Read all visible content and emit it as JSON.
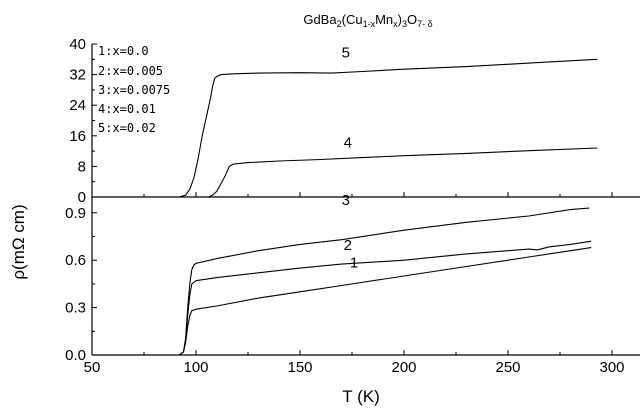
{
  "chart_data": [
    {
      "type": "line",
      "panel": "upper",
      "title": "",
      "title_parts": {
        "prefix": "GdBa",
        "sub1": "2",
        "mid1": "(Cu",
        "sub2": "1-x",
        "mid2": "Mn",
        "sub3": "x",
        "mid3": ")",
        "sub4": "3",
        "mid4": "O",
        "sub5": "7- δ"
      },
      "xlim": [
        50,
        320
      ],
      "ylim": [
        0,
        40
      ],
      "yticks": [
        0,
        8,
        16,
        24,
        32,
        40
      ],
      "ytick_labels": [
        "0",
        "8",
        "16",
        "24",
        "32",
        "40"
      ],
      "legend_placement": "top-left",
      "legend": [
        "1:x=0.0",
        "2:x=0.005",
        "3:x=0.0075",
        "4:x=0.01",
        "5:x=0.02"
      ],
      "series": [
        {
          "name": "5",
          "x": [
            85,
            92,
            95,
            97,
            99,
            101,
            103,
            105,
            107,
            108,
            109,
            110,
            112,
            118,
            130,
            150,
            165,
            180,
            200,
            230,
            260,
            293
          ],
          "y": [
            0,
            0,
            0.5,
            2,
            5,
            10,
            16,
            21,
            26,
            29,
            31,
            31.5,
            32,
            32.2,
            32.4,
            32.5,
            32.4,
            32.8,
            33.4,
            34.1,
            35.0,
            36.0
          ],
          "label": "5",
          "label_at": [
            172,
            36.5
          ]
        },
        {
          "name": "4",
          "x": [
            100,
            106,
            108,
            110,
            112,
            114,
            116,
            118,
            125,
            140,
            160,
            180,
            200,
            230,
            260,
            293
          ],
          "y": [
            0,
            0,
            0.5,
            1.5,
            3.5,
            5.5,
            8,
            8.6,
            9.0,
            9.4,
            9.8,
            10.3,
            10.8,
            11.4,
            12.1,
            12.8
          ],
          "label": "4",
          "label_at": [
            173,
            13
          ]
        }
      ]
    },
    {
      "type": "line",
      "panel": "lower",
      "xlabel": "T (K)",
      "ylabel": "ρ(mΩ cm)",
      "xlim": [
        50,
        320
      ],
      "ylim": [
        0,
        1.0
      ],
      "xticks": [
        50,
        100,
        150,
        200,
        250,
        300
      ],
      "xtick_labels": [
        "50",
        "100",
        "150",
        "200",
        "250",
        "300"
      ],
      "yticks": [
        0.0,
        0.3,
        0.6,
        0.9
      ],
      "ytick_labels": [
        "0.0",
        "0.3",
        "0.6",
        "0.9"
      ],
      "series": [
        {
          "name": "3",
          "x": [
            85,
            92,
            94,
            95,
            96,
            97,
            98,
            99,
            100,
            110,
            130,
            150,
            170,
            200,
            230,
            260,
            280,
            289
          ],
          "y": [
            0,
            0,
            0.02,
            0.1,
            0.3,
            0.45,
            0.54,
            0.57,
            0.58,
            0.61,
            0.66,
            0.7,
            0.73,
            0.79,
            0.84,
            0.88,
            0.92,
            0.93
          ],
          "label": "3",
          "label_at": [
            172,
            0.95
          ]
        },
        {
          "name": "2",
          "x": [
            85,
            92,
            94,
            95,
            96,
            97,
            98,
            100,
            110,
            130,
            150,
            170,
            200,
            230,
            250,
            260,
            264,
            270,
            280,
            290
          ],
          "y": [
            0,
            0,
            0.02,
            0.1,
            0.25,
            0.38,
            0.45,
            0.47,
            0.49,
            0.52,
            0.55,
            0.575,
            0.6,
            0.64,
            0.66,
            0.67,
            0.665,
            0.685,
            0.7,
            0.72
          ],
          "label": "2",
          "label_at": [
            173,
            0.665
          ]
        },
        {
          "name": "1",
          "x": [
            85,
            92,
            94,
            95,
            96,
            97,
            98,
            100,
            110,
            130,
            150,
            170,
            200,
            230,
            260,
            290
          ],
          "y": [
            0,
            0,
            0.02,
            0.08,
            0.18,
            0.25,
            0.28,
            0.29,
            0.31,
            0.36,
            0.4,
            0.44,
            0.5,
            0.56,
            0.62,
            0.68
          ],
          "label": "1",
          "label_at": [
            176,
            0.555
          ]
        }
      ]
    }
  ]
}
